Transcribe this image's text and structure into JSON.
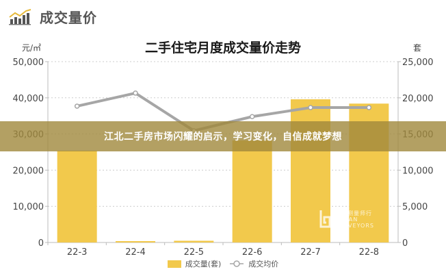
{
  "header": {
    "brand_title": "成交量价",
    "brand_icon": "bar-line-chart-icon"
  },
  "banner": {
    "text": "江北二手房市场闪耀的启示，学习变化，自信成就梦想"
  },
  "watermark": {
    "line1": "城市测量师行",
    "line2": "URBAN",
    "line3": "SURVEYORS"
  },
  "colors": {
    "bar": "#F2C94C",
    "line": "#A6A6A6",
    "banner": "#A0883C",
    "grid": "#CCCCCC",
    "axis": "#BBBBBB"
  },
  "chart_data": {
    "type": "bar+line",
    "title": "二手住宅月度成交量价走势",
    "categories": [
      "22-3",
      "22-4",
      "22-5",
      "22-6",
      "22-7",
      "22-8"
    ],
    "series": [
      {
        "name": "成交量(套)",
        "type": "bar",
        "axis": "right",
        "values": [
          12700,
          190,
          240,
          14100,
          19800,
          19200
        ]
      },
      {
        "name": "成交均价",
        "type": "line",
        "axis": "left",
        "values": [
          37700,
          41300,
          30900,
          34800,
          37300,
          37300
        ]
      }
    ],
    "left_axis": {
      "label": "元/㎡",
      "ylim": [
        0,
        50000
      ],
      "ticks": [
        "0",
        "10,000",
        "20,000",
        "30,000",
        "40,000",
        "50,000"
      ]
    },
    "right_axis": {
      "label": "套",
      "ylim": [
        0,
        25000
      ],
      "ticks": [
        "0",
        "5,000",
        "10,000",
        "15,000",
        "20,000",
        "25,000"
      ]
    },
    "grid": true,
    "legend_position": "bottom",
    "legend": [
      "成交量(套)",
      "成交均价"
    ]
  }
}
